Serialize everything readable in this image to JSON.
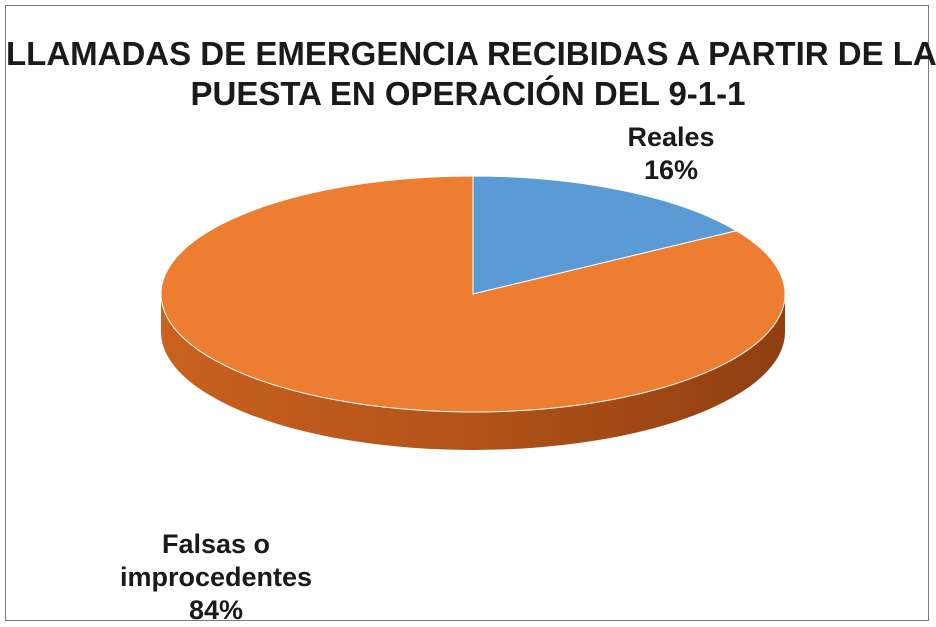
{
  "chart_data": {
    "type": "pie",
    "title": "LLAMADAS  DE EMERGENCIA RECIBIDAS  A PARTIR DE LA PUESTA EN OPERACIÓN DEL 9-1-1",
    "title_lines": [
      "LLAMADAS  DE EMERGENCIA RECIBIDAS  A PARTIR DE LA",
      "PUESTA EN OPERACIÓN DEL 9-1-1"
    ],
    "style": "3d",
    "slices": [
      {
        "label_lines": [
          "Reales"
        ],
        "value": 16,
        "value_label": "16%",
        "color": "#5b9bd5",
        "side_color": "#3d75a8"
      },
      {
        "label_lines": [
          "Falsas o",
          "improcedentes"
        ],
        "value": 84,
        "value_label": "84%",
        "color": "#ed7d31",
        "side_color": "#b5561c"
      }
    ]
  }
}
